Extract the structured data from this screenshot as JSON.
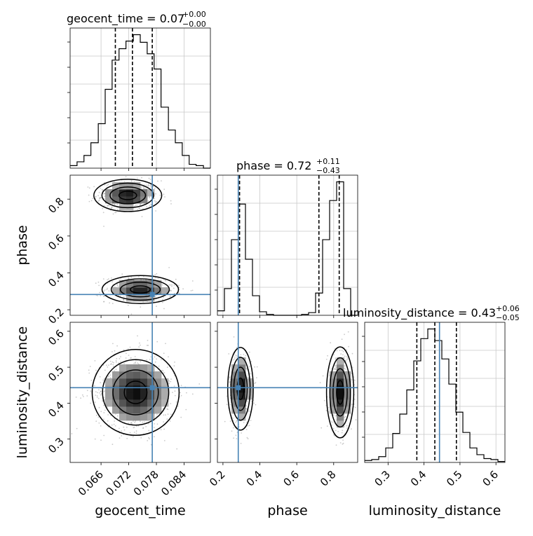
{
  "chart_data": {
    "type": "corner",
    "parameters": [
      "geocent_time",
      "phase",
      "luminosity_distance"
    ],
    "axis_labels": {
      "geocent_time": "geocent_time",
      "phase": "phase",
      "luminosity_distance": "luminosity_distance"
    },
    "ranges": {
      "geocent_time": [
        0.0593,
        0.0897
      ],
      "phase": [
        0.17,
        0.93
      ],
      "luminosity_distance": [
        0.235,
        0.625
      ]
    },
    "ticks": {
      "geocent_time": [
        0.066,
        0.072,
        0.078,
        0.084
      ],
      "phase": [
        0.2,
        0.4,
        0.6,
        0.8
      ],
      "luminosity_distance": [
        0.3,
        0.4,
        0.5,
        0.6
      ]
    },
    "tick_labels": {
      "geocent_time": [
        "0.066",
        "0.072",
        "0.078",
        "0.084"
      ],
      "phase": [
        "0.2",
        "0.4",
        "0.6",
        "0.8"
      ],
      "luminosity_distance": [
        "0.3",
        "0.4",
        "0.5",
        "0.6"
      ]
    },
    "titles": [
      {
        "param": "geocent_time",
        "prefix": "geocent_time = ",
        "value": "0.07",
        "plus": "+0.00",
        "minus": "−0.00"
      },
      {
        "param": "phase",
        "prefix": "phase = ",
        "value": "0.72",
        "plus": "+0.11",
        "minus": "−0.43"
      },
      {
        "param": "luminosity_distance",
        "prefix": "luminosity_distance = ",
        "value": "0.43",
        "plus": "+0.06",
        "minus": "−0.05"
      }
    ],
    "quantiles": {
      "geocent_time": [
        0.0691,
        0.0728,
        0.0771
      ],
      "phase": [
        0.29,
        0.72,
        0.83
      ],
      "luminosity_distance": [
        0.38,
        0.43,
        0.49
      ]
    },
    "truths": {
      "geocent_time": 0.0771,
      "phase": 0.283,
      "luminosity_distance": 0.443
    },
    "histograms": {
      "geocent_time": {
        "edges": [
          0.0593,
          0.0608,
          0.0623,
          0.0638,
          0.0654,
          0.0669,
          0.0684,
          0.0699,
          0.0714,
          0.073,
          0.0745,
          0.076,
          0.0775,
          0.079,
          0.0806,
          0.0821,
          0.0836,
          0.0851,
          0.0866,
          0.0882,
          0.0897
        ],
        "counts": [
          2,
          5,
          10,
          20,
          35,
          62,
          85,
          94,
          100,
          105,
          99,
          90,
          78,
          48,
          30,
          20,
          10,
          3,
          2,
          0
        ]
      },
      "phase": {
        "edges": [
          0.17,
          0.208,
          0.246,
          0.284,
          0.322,
          0.36,
          0.398,
          0.436,
          0.474,
          0.512,
          0.55,
          0.588,
          0.626,
          0.664,
          0.702,
          0.74,
          0.778,
          0.816,
          0.854,
          0.892,
          0.93
        ],
        "counts": [
          5,
          30,
          85,
          125,
          63,
          22,
          4,
          1,
          0,
          0,
          0,
          0,
          1,
          3,
          25,
          85,
          129,
          150,
          30,
          0
        ]
      },
      "luminosity_distance": {
        "edges": [
          0.235,
          0.2545,
          0.274,
          0.2935,
          0.313,
          0.3325,
          0.352,
          0.3715,
          0.391,
          0.4105,
          0.43,
          0.4495,
          0.469,
          0.4885,
          0.508,
          0.5275,
          0.547,
          0.5665,
          0.586,
          0.6055,
          0.625
        ],
        "counts": [
          2,
          3,
          6,
          15,
          30,
          50,
          75,
          105,
          128,
          138,
          126,
          107,
          81,
          52,
          31,
          15,
          8,
          4,
          3,
          1
        ]
      }
    },
    "density_modes": {
      "phase_vs_geocent_time": [
        {
          "x": 0.0718,
          "y": 0.82,
          "sx": 0.0032,
          "sy": 0.038,
          "weight": 0.52
        },
        {
          "x": 0.0745,
          "y": 0.31,
          "sx": 0.0036,
          "sy": 0.033,
          "weight": 0.48
        }
      ],
      "luminosity_distance_vs_geocent_time": [
        {
          "x": 0.0735,
          "y": 0.43,
          "sx": 0.0041,
          "sy": 0.052,
          "weight": 1.0
        }
      ],
      "luminosity_distance_vs_phase": [
        {
          "x": 0.295,
          "y": 0.44,
          "sx": 0.03,
          "sy": 0.05,
          "weight": 0.5
        },
        {
          "x": 0.835,
          "y": 0.43,
          "sx": 0.032,
          "sy": 0.055,
          "weight": 0.5
        }
      ]
    },
    "grid": true,
    "truth_color": "#4682b4",
    "line_color": "#000000",
    "grid_color": "#c8c8c8"
  }
}
